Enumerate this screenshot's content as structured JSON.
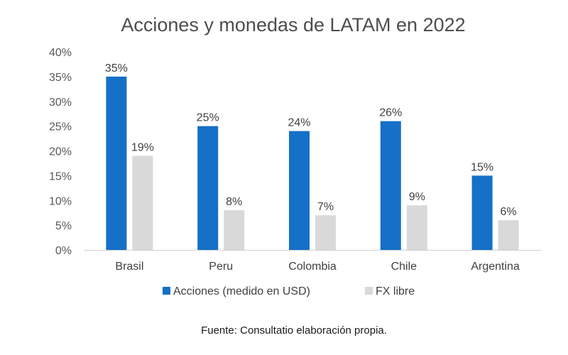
{
  "chart_data": {
    "type": "bar",
    "title": "Acciones y monedas de LATAM en 2022",
    "categories": [
      "Brasil",
      "Peru",
      "Colombia",
      "Chile",
      "Argentina"
    ],
    "series": [
      {
        "name": "Acciones (medido en USD)",
        "color": "#1570c7",
        "values": [
          35,
          25,
          24,
          26,
          15
        ],
        "labels": [
          "35%",
          "25%",
          "24%",
          "26%",
          "15%"
        ]
      },
      {
        "name": "FX libre",
        "color": "#d9d9d9",
        "values": [
          19,
          8,
          7,
          9,
          6
        ],
        "labels": [
          "19%",
          "8%",
          "7%",
          "9%",
          "6%"
        ]
      }
    ],
    "ylim": [
      0,
      40
    ],
    "yticks": [
      0,
      5,
      10,
      15,
      20,
      25,
      30,
      35,
      40
    ],
    "ytick_labels": [
      "0%",
      "5%",
      "10%",
      "15%",
      "20%",
      "25%",
      "30%",
      "35%",
      "40%"
    ],
    "xlabel": "",
    "ylabel": "",
    "grid": false,
    "legend_position": "bottom"
  },
  "source_note": "Fuente: Consultatio elaboración propia."
}
